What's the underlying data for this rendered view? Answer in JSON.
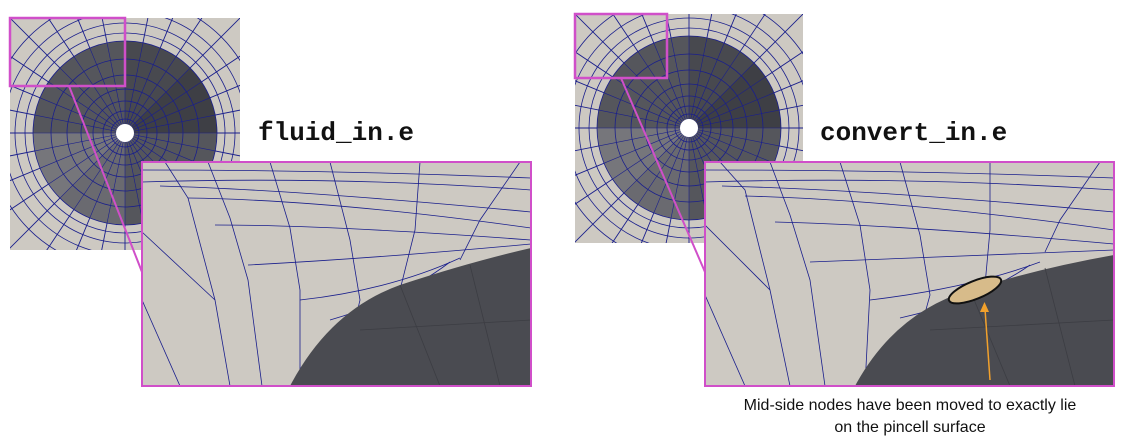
{
  "left_panel": {
    "label": "fluid_in.e"
  },
  "right_panel": {
    "label": "convert_in.e",
    "annotation": {
      "line1": "Mid-side nodes have been moved to exactly lie",
      "line2": "on the pincell surface"
    }
  },
  "colors": {
    "mesh_light": "#cdc9c2",
    "mesh_line": "#1a1f8c",
    "pin_dark": "#4a4b51",
    "highlight_box": "#d04fc9",
    "arrow": "#f2a12c",
    "ellipse_fill": "#d7bb8a"
  }
}
